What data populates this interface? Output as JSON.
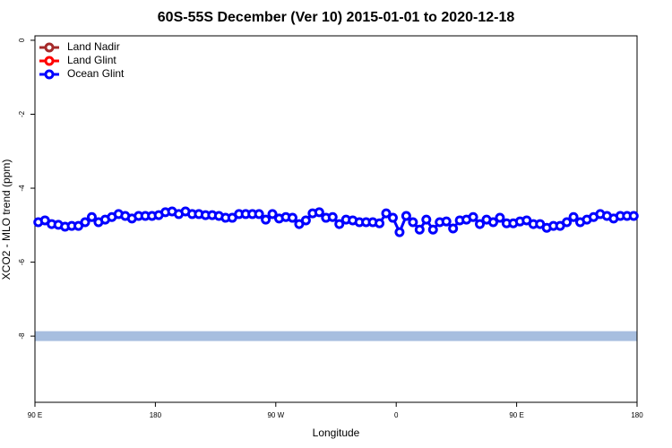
{
  "chart_data": {
    "type": "line",
    "title": "60S-55S December (Ver 10)   2015-01-01 to 2020-12-18",
    "x_label": "Longitude",
    "y_label": "XCO2 - MLO trend (ppm)",
    "xlim": [
      90,
      540
    ],
    "ylim": [
      -9.79,
      0.12
    ],
    "xticks": [
      {
        "value": 90,
        "label": "90 E"
      },
      180,
      {
        "value": 270,
        "label": "90 W"
      },
      {
        "value": 360,
        "label": "0"
      },
      {
        "value": 450,
        "label": "90 E"
      },
      {
        "value": 540,
        "label": "180"
      }
    ],
    "yticks": [
      0,
      -2,
      -4,
      -6,
      -8
    ],
    "legend_position": "top-left",
    "reference_band": {
      "value": -8,
      "color": "#a7bedf"
    },
    "x": [
      92.5,
      97.5,
      102.5,
      107.5,
      112.5,
      117.5,
      122.5,
      127.5,
      132.5,
      137.5,
      142.5,
      147.5,
      152.5,
      157.5,
      162.5,
      167.5,
      172.5,
      177.5,
      182.5,
      187.5,
      192.5,
      197.5,
      202.5,
      207.5,
      212.5,
      217.5,
      222.5,
      227.5,
      232.5,
      237.5,
      242.5,
      247.5,
      252.5,
      257.5,
      262.5,
      267.5,
      272.5,
      277.5,
      282.5,
      287.5,
      292.5,
      297.5,
      302.5,
      307.5,
      312.5,
      317.5,
      322.5,
      327.5,
      332.5,
      337.5,
      342.5,
      347.5,
      352.5,
      357.5,
      362.5,
      367.5,
      372.5,
      377.5,
      382.5,
      387.5,
      392.5,
      397.5,
      402.5,
      407.5,
      412.5,
      417.5,
      422.5,
      427.5,
      432.5,
      437.5,
      442.5,
      447.5,
      452.5,
      457.5,
      462.5,
      467.5,
      472.5,
      477.5,
      482.5,
      487.5,
      492.5,
      497.5,
      502.5,
      507.5,
      512.5,
      517.5,
      522.5,
      527.5,
      532.5,
      537.5
    ],
    "series": [
      {
        "name": "Land Nadir",
        "color": "#a52a2a",
        "values": [
          null,
          null,
          null,
          null,
          null,
          null,
          null,
          null,
          null,
          null,
          null,
          null,
          null,
          null,
          null,
          null,
          null,
          null,
          null,
          null,
          null,
          null,
          null,
          null,
          null,
          null,
          null,
          null,
          null,
          null,
          null,
          null,
          null,
          null,
          null,
          null,
          null,
          null,
          null,
          null,
          null,
          null,
          null,
          null,
          null,
          null,
          null,
          null,
          null,
          null,
          null,
          null,
          null,
          null,
          null,
          null,
          null,
          null,
          null,
          null,
          null,
          null,
          null,
          null,
          null,
          null,
          null,
          null,
          null,
          null,
          null,
          null,
          null,
          null,
          null,
          null,
          null,
          null,
          null,
          null,
          null,
          null,
          null,
          null,
          null,
          null,
          null,
          null,
          null,
          null
        ]
      },
      {
        "name": "Land Glint",
        "color": "#ff0000",
        "values": [
          null,
          null,
          null,
          null,
          null,
          null,
          null,
          null,
          null,
          null,
          null,
          null,
          null,
          null,
          null,
          null,
          null,
          null,
          null,
          null,
          null,
          null,
          null,
          null,
          null,
          null,
          null,
          null,
          null,
          null,
          null,
          null,
          null,
          null,
          null,
          null,
          null,
          null,
          null,
          null,
          null,
          null,
          null,
          null,
          null,
          null,
          null,
          null,
          null,
          null,
          null,
          null,
          null,
          null,
          null,
          null,
          null,
          null,
          null,
          null,
          null,
          null,
          null,
          null,
          null,
          null,
          null,
          null,
          null,
          null,
          null,
          null,
          null,
          null,
          null,
          null,
          null,
          null,
          null,
          null,
          null,
          null,
          null,
          null,
          null,
          null,
          null,
          null,
          null,
          null
        ]
      },
      {
        "name": "Ocean Glint",
        "color": "#0000ff",
        "values": [
          -4.92,
          -4.87,
          -4.97,
          -4.99,
          -5.04,
          -5.02,
          -5.02,
          -4.92,
          -4.78,
          -4.92,
          -4.85,
          -4.78,
          -4.7,
          -4.75,
          -4.82,
          -4.75,
          -4.75,
          -4.75,
          -4.73,
          -4.65,
          -4.63,
          -4.7,
          -4.63,
          -4.7,
          -4.7,
          -4.73,
          -4.73,
          -4.75,
          -4.8,
          -4.8,
          -4.7,
          -4.7,
          -4.7,
          -4.7,
          -4.85,
          -4.7,
          -4.82,
          -4.78,
          -4.8,
          -4.97,
          -4.87,
          -4.68,
          -4.65,
          -4.8,
          -4.78,
          -4.97,
          -4.85,
          -4.87,
          -4.92,
          -4.92,
          -4.92,
          -4.95,
          -4.68,
          -4.8,
          -5.19,
          -4.75,
          -4.92,
          -5.12,
          -4.85,
          -5.12,
          -4.92,
          -4.9,
          -5.09,
          -4.87,
          -4.85,
          -4.78,
          -4.97,
          -4.85,
          -4.92,
          -4.8,
          -4.95,
          -4.95,
          -4.9,
          -4.87,
          -4.97,
          -4.97,
          -5.07,
          -5.02,
          -5.02,
          -4.92,
          -4.78,
          -4.92,
          -4.85,
          -4.78,
          -4.7,
          -4.75,
          -4.82,
          -4.75,
          -4.75,
          -4.75
        ]
      }
    ]
  }
}
